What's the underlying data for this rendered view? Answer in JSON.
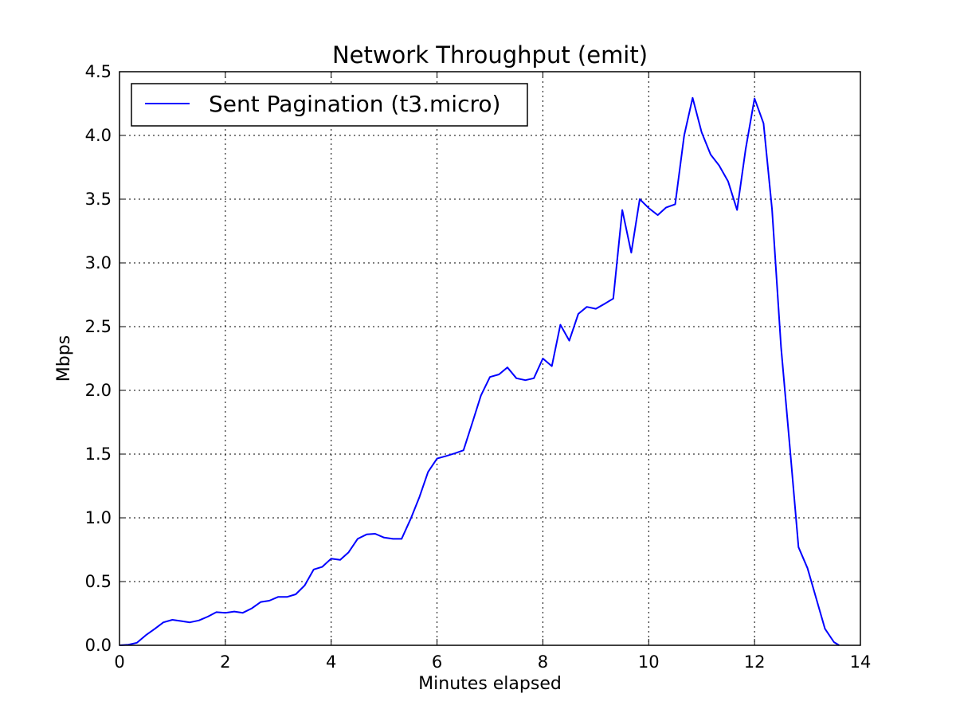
{
  "chart_data": {
    "type": "line",
    "title": "Network Throughput (emit)",
    "xlabel": "Minutes elapsed",
    "ylabel": "Mbps",
    "xlim": [
      0,
      14
    ],
    "ylim": [
      0,
      4.5
    ],
    "xticks": [
      0,
      2,
      4,
      6,
      8,
      10,
      12,
      14
    ],
    "xtick_labels": [
      "0",
      "2",
      "4",
      "6",
      "8",
      "10",
      "12",
      "14"
    ],
    "yticks": [
      0.0,
      0.5,
      1.0,
      1.5,
      2.0,
      2.5,
      3.0,
      3.5,
      4.0,
      4.5
    ],
    "ytick_labels": [
      "0.0",
      "0.5",
      "1.0",
      "1.5",
      "2.0",
      "2.5",
      "3.0",
      "3.5",
      "4.0",
      "4.5"
    ],
    "grid": true,
    "legend_position": "top-left",
    "series": [
      {
        "name": "Sent Pagination (t3.micro)",
        "color": "#0000ff",
        "x": [
          0.0,
          0.17,
          0.33,
          0.5,
          0.67,
          0.83,
          1.0,
          1.17,
          1.33,
          1.5,
          1.67,
          1.83,
          2.0,
          2.17,
          2.33,
          2.5,
          2.67,
          2.83,
          3.0,
          3.17,
          3.33,
          3.5,
          3.67,
          3.83,
          4.0,
          4.17,
          4.33,
          4.5,
          4.67,
          4.83,
          5.0,
          5.17,
          5.33,
          5.5,
          5.67,
          5.83,
          6.0,
          6.17,
          6.33,
          6.5,
          6.67,
          6.83,
          7.0,
          7.17,
          7.33,
          7.5,
          7.67,
          7.83,
          8.0,
          8.17,
          8.33,
          8.5,
          8.67,
          8.83,
          9.0,
          9.17,
          9.33,
          9.5,
          9.67,
          9.83,
          10.0,
          10.17,
          10.33,
          10.5,
          10.67,
          10.83,
          11.0,
          11.17,
          11.33,
          11.5,
          11.67,
          11.83,
          12.0,
          12.17,
          12.33,
          12.5,
          12.67,
          12.83,
          13.0,
          13.17,
          13.33,
          13.5,
          13.6
        ],
        "values": [
          0.0,
          0.005,
          0.02,
          0.08,
          0.13,
          0.18,
          0.2,
          0.19,
          0.18,
          0.195,
          0.225,
          0.26,
          0.255,
          0.265,
          0.255,
          0.29,
          0.34,
          0.35,
          0.38,
          0.38,
          0.4,
          0.47,
          0.595,
          0.615,
          0.68,
          0.67,
          0.73,
          0.835,
          0.87,
          0.875,
          0.845,
          0.835,
          0.835,
          0.99,
          1.165,
          1.36,
          1.465,
          1.485,
          1.505,
          1.53,
          1.75,
          1.96,
          2.105,
          2.125,
          2.18,
          2.095,
          2.08,
          2.095,
          2.25,
          2.19,
          2.515,
          2.39,
          2.6,
          2.655,
          2.64,
          2.68,
          2.72,
          3.415,
          3.08,
          3.5,
          3.43,
          3.375,
          3.435,
          3.46,
          4.0,
          4.295,
          4.025,
          3.85,
          3.765,
          3.64,
          3.415,
          3.89,
          4.29,
          4.095,
          3.42,
          2.34,
          1.545,
          0.77,
          0.605,
          0.36,
          0.13,
          0.025,
          0.0
        ]
      }
    ]
  }
}
